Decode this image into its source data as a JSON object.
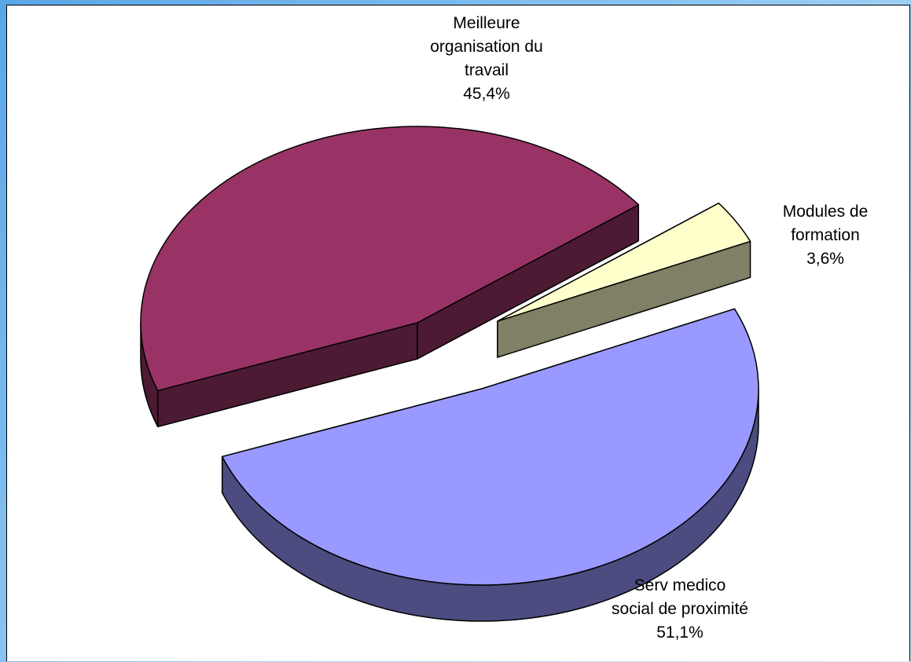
{
  "chart_data": {
    "type": "pie",
    "slices": [
      {
        "label": "Serv medico social de proximité",
        "value": 51.1,
        "value_label": "51,1%",
        "color": "#9999ff",
        "side_color": "#4c4c80"
      },
      {
        "label": "Meilleure organisation du travail",
        "value": 45.4,
        "value_label": "45,4%",
        "color": "#993366",
        "side_color": "#4d1a33"
      },
      {
        "label": "Modules de formation",
        "value": 3.6,
        "value_label": "3,6%",
        "color": "#ffffcc",
        "side_color": "#808066"
      }
    ]
  },
  "labels": {
    "organisation": {
      "line1": "Meilleure",
      "line2": "organisation du",
      "line3": "travail",
      "pct": "45,4%"
    },
    "modules": {
      "line1": "Modules de",
      "line2": "formation",
      "pct": "3,6%"
    },
    "serv": {
      "line1": "Serv medico",
      "line2": "social de proximité",
      "pct": "51,1%"
    }
  }
}
